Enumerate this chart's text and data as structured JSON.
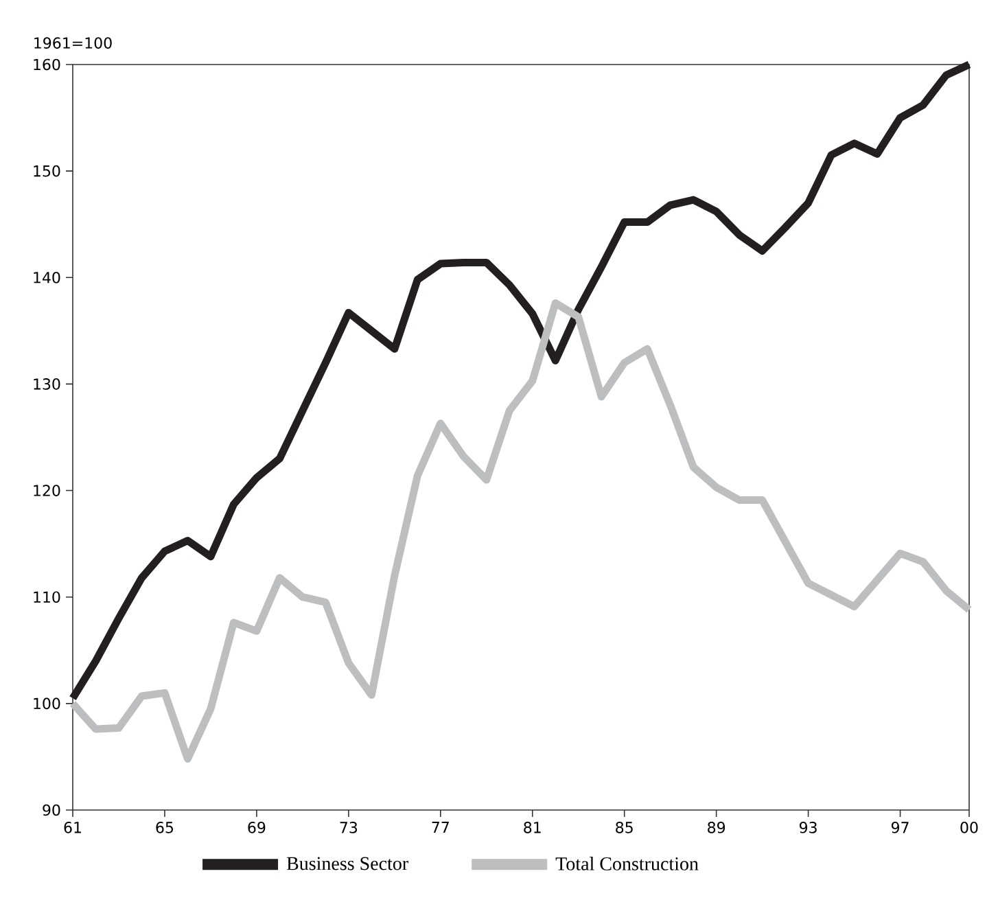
{
  "chart_data": {
    "type": "line",
    "annotations": [
      "1961=100"
    ],
    "x": [
      1961,
      1962,
      1963,
      1964,
      1965,
      1966,
      1967,
      1968,
      1969,
      1970,
      1971,
      1972,
      1973,
      1974,
      1975,
      1976,
      1977,
      1978,
      1979,
      1980,
      1981,
      1982,
      1983,
      1984,
      1985,
      1986,
      1987,
      1988,
      1989,
      1990,
      1991,
      1992,
      1993,
      1994,
      1995,
      1996,
      1997,
      1998,
      1999,
      2000
    ],
    "series": [
      {
        "name": "Business Sector",
        "color": "#231f20",
        "values": [
          100.5,
          104,
          108,
          111.8,
          114.3,
          115.3,
          113.8,
          118.7,
          121.2,
          123,
          127.5,
          132,
          136.7,
          135,
          133.3,
          139.8,
          141.3,
          141.4,
          141.4,
          139.3,
          136.6,
          132.2,
          137,
          141,
          145.2,
          145.2,
          146.8,
          147.3,
          146.2,
          144,
          142.5,
          144.7,
          147,
          151.5,
          152.6,
          151.6,
          155,
          156.2,
          159,
          160
        ]
      },
      {
        "name": "Total Construction",
        "color": "#bcbec0",
        "values": [
          100,
          97.6,
          97.7,
          100.7,
          101,
          94.8,
          99.5,
          107.6,
          106.8,
          111.8,
          110,
          109.5,
          103.8,
          100.8,
          112,
          121.4,
          126.3,
          123.2,
          121,
          127.5,
          130.3,
          137.6,
          136.3,
          128.8,
          132,
          133.3,
          128,
          122.2,
          120.3,
          119.1,
          119.1,
          115.2,
          111.3,
          110.2,
          109.1,
          111.6,
          114.1,
          113.3,
          110.6,
          108.8
        ]
      }
    ],
    "xlim": [
      1961,
      2000
    ],
    "xticks": [
      {
        "value": 1961,
        "label": "61"
      },
      {
        "value": 1965,
        "label": "65"
      },
      {
        "value": 1969,
        "label": "69"
      },
      {
        "value": 1973,
        "label": "73"
      },
      {
        "value": 1977,
        "label": "77"
      },
      {
        "value": 1981,
        "label": "81"
      },
      {
        "value": 1985,
        "label": "85"
      },
      {
        "value": 1989,
        "label": "89"
      },
      {
        "value": 1993,
        "label": "93"
      },
      {
        "value": 1997,
        "label": "97"
      },
      {
        "value": 2000,
        "label": "00"
      }
    ],
    "ylim": [
      90,
      160
    ],
    "yticks": [
      90,
      100,
      110,
      120,
      130,
      140,
      150,
      160
    ],
    "grid": false,
    "legend": "bottom",
    "line_style": "solid"
  }
}
